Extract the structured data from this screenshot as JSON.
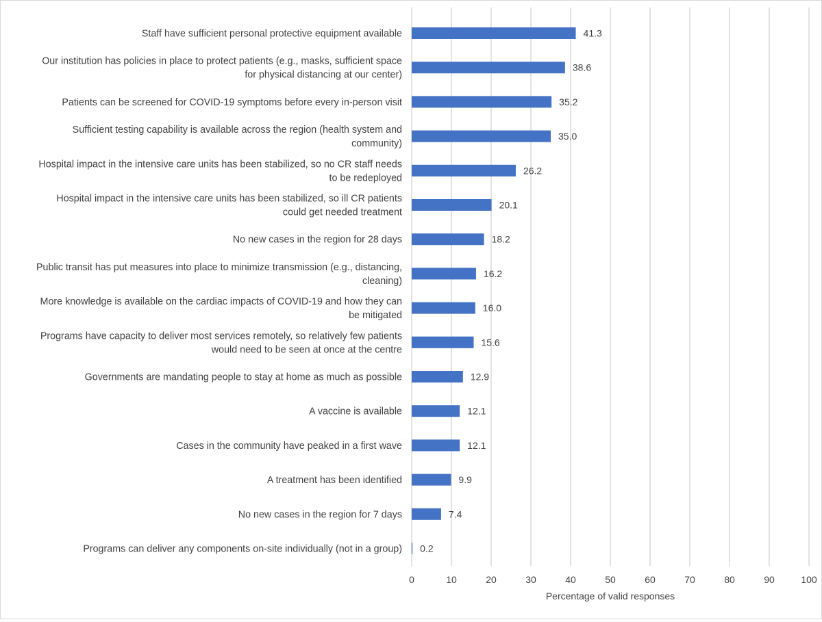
{
  "chart_data": {
    "type": "bar",
    "orientation": "horizontal",
    "title": "",
    "xlabel": "Percentage of valid responses",
    "ylabel": "",
    "xlim": [
      0,
      100
    ],
    "xticks": [
      "0",
      "10",
      "20",
      "30",
      "40",
      "50",
      "60",
      "70",
      "80",
      "90",
      "100"
    ],
    "grid": true,
    "bar_color": "#4472C4",
    "categories": [
      [
        "Staff have sufficient personal protective equipment available"
      ],
      [
        "Our institution has policies in place to protect patients (e.g., masks, sufficient space",
        "for physical distancing at our center)"
      ],
      [
        "Patients can be screened for COVID-19 symptoms before every in-person visit"
      ],
      [
        "Sufficient testing capability is available across the region (health system and",
        "community)"
      ],
      [
        "Hospital impact in the intensive care units has been stabilized, so no CR staff needs",
        "to be redeployed"
      ],
      [
        "Hospital impact in the intensive care units has been stabilized, so ill CR patients",
        "could get needed treatment"
      ],
      [
        "No new cases in the region for 28 days"
      ],
      [
        "Public transit has put measures into place to minimize transmission (e.g., distancing,",
        "cleaning)"
      ],
      [
        "More knowledge is available on the cardiac impacts of COVID-19 and how they can",
        "be mitigated"
      ],
      [
        "Programs have capacity to deliver most services remotely, so relatively few patients",
        "would need to be seen at once at the centre"
      ],
      [
        "Governments are mandating people to stay at home as much as possible"
      ],
      [
        "A vaccine is available"
      ],
      [
        "Cases in the community have peaked in a first wave"
      ],
      [
        "A treatment has been identified"
      ],
      [
        "No new cases in the region for 7 days"
      ],
      [
        "Programs can deliver any components on-site individually (not in a group)"
      ]
    ],
    "values": [
      41.3,
      38.6,
      35.2,
      35.0,
      26.2,
      20.1,
      18.2,
      16.2,
      16.0,
      15.6,
      12.9,
      12.1,
      12.1,
      9.9,
      7.4,
      0.2
    ],
    "value_labels": [
      "41.3",
      "38.6",
      "35.2",
      "35.0",
      "26.2",
      "20.1",
      "18.2",
      "16.2",
      "16.0",
      "15.6",
      "12.9",
      "12.1",
      "12.1",
      "9.9",
      "7.4",
      "0.2"
    ]
  }
}
